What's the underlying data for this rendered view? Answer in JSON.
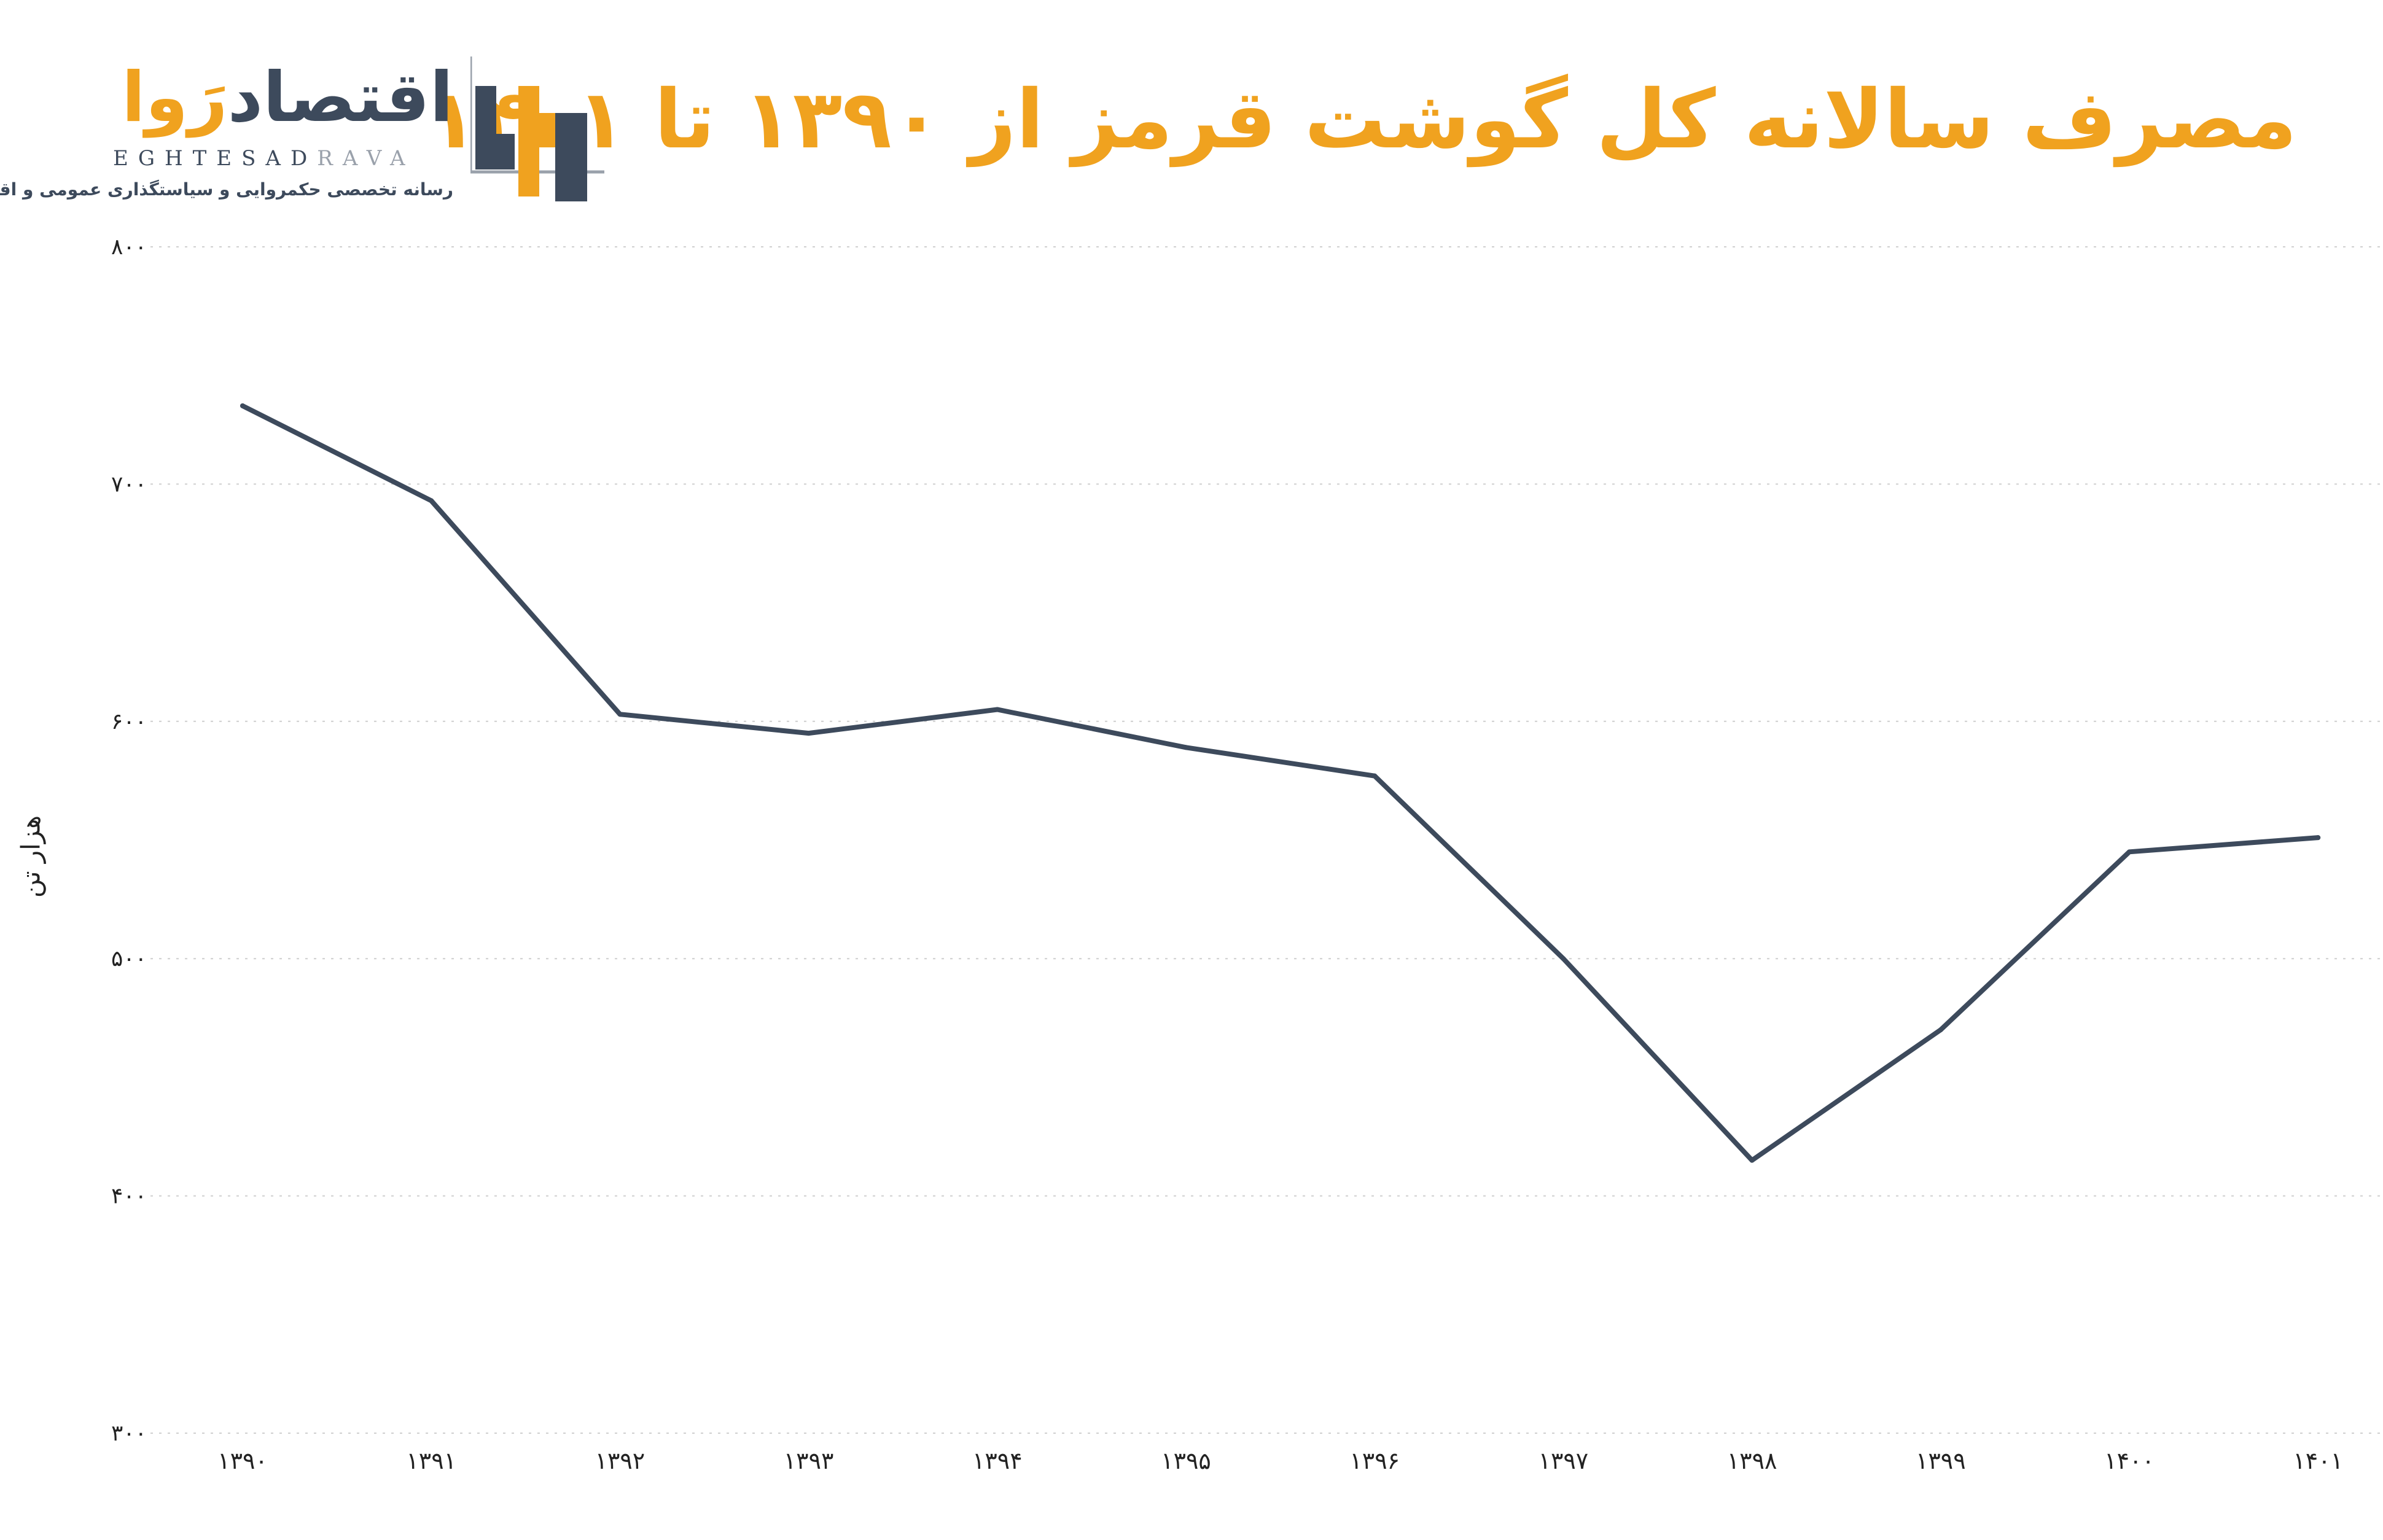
{
  "title": "مصرف سالانه کل گوشت قرمز از ۱۳۹۰ تا ۱۴۰۱",
  "brand": {
    "name_part1": "اقتصاد",
    "name_part2": "رَوا",
    "latin_part1": "EGHTESAD",
    "latin_part2": "RAVA",
    "tagline": "رسانه تخصصی حکمروایی و سیاستگذاری عمومی و اقتصادی"
  },
  "colors": {
    "accent": "#f0a21f",
    "line": "#3d4a5c",
    "grid": "#cfcfcf",
    "text": "#222222"
  },
  "chart_data": {
    "type": "line",
    "title": "مصرف سالانه کل گوشت قرمز از ۱۳۹۰ تا ۱۴۰۱",
    "ylabel": "هزار تن",
    "xlabel": "",
    "categories": [
      "۱۳۹۰",
      "۱۳۹۱",
      "۱۳۹۲",
      "۱۳۹۳",
      "۱۳۹۴",
      "۱۳۹۵",
      "۱۳۹۶",
      "۱۳۹۷",
      "۱۳۹۸",
      "۱۳۹۹",
      "۱۴۰۰",
      "۱۴۰۱"
    ],
    "series": [
      {
        "values": [
          733,
          693,
          603,
          595,
          605,
          589,
          577,
          500,
          415,
          470,
          545,
          551
        ]
      }
    ],
    "ylim": [
      300,
      800
    ],
    "yticks": [
      300,
      400,
      500,
      600,
      700,
      800
    ],
    "ytick_labels": [
      "۳۰۰",
      "۴۰۰",
      "۵۰۰",
      "۶۰۰",
      "۷۰۰",
      "۸۰۰"
    ],
    "grid": true,
    "legend": "none"
  }
}
